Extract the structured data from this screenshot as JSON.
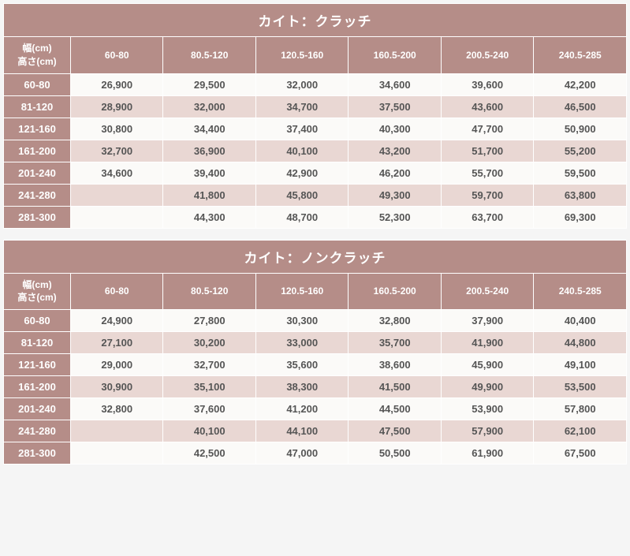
{
  "tables": [
    {
      "title": "カイト：クラッチ",
      "corner_top": "幅(cm)",
      "corner_bottom": "高さ(cm)",
      "columns": [
        "60-80",
        "80.5-120",
        "120.5-160",
        "160.5-200",
        "200.5-240",
        "240.5-285"
      ],
      "row_heads": [
        "60-80",
        "81-120",
        "121-160",
        "161-200",
        "201-240",
        "241-280",
        "281-300"
      ],
      "rows": [
        [
          "26,900",
          "29,500",
          "32,000",
          "34,600",
          "39,600",
          "42,200"
        ],
        [
          "28,900",
          "32,000",
          "34,700",
          "37,500",
          "43,600",
          "46,500"
        ],
        [
          "30,800",
          "34,400",
          "37,400",
          "40,300",
          "47,700",
          "50,900"
        ],
        [
          "32,700",
          "36,900",
          "40,100",
          "43,200",
          "51,700",
          "55,200"
        ],
        [
          "34,600",
          "39,400",
          "42,900",
          "46,200",
          "55,700",
          "59,500"
        ],
        [
          "",
          "41,800",
          "45,800",
          "49,300",
          "59,700",
          "63,800"
        ],
        [
          "",
          "44,300",
          "48,700",
          "52,300",
          "63,700",
          "69,300"
        ]
      ]
    },
    {
      "title": "カイト：ノンクラッチ",
      "corner_top": "幅(cm)",
      "corner_bottom": "高さ(cm)",
      "columns": [
        "60-80",
        "80.5-120",
        "120.5-160",
        "160.5-200",
        "200.5-240",
        "240.5-285"
      ],
      "row_heads": [
        "60-80",
        "81-120",
        "121-160",
        "161-200",
        "201-240",
        "241-280",
        "281-300"
      ],
      "rows": [
        [
          "24,900",
          "27,800",
          "30,300",
          "32,800",
          "37,900",
          "40,400"
        ],
        [
          "27,100",
          "30,200",
          "33,000",
          "35,700",
          "41,900",
          "44,800"
        ],
        [
          "29,000",
          "32,700",
          "35,600",
          "38,600",
          "45,900",
          "49,100"
        ],
        [
          "30,900",
          "35,100",
          "38,300",
          "41,500",
          "49,900",
          "53,500"
        ],
        [
          "32,800",
          "37,600",
          "41,200",
          "44,500",
          "53,900",
          "57,800"
        ],
        [
          "",
          "40,100",
          "44,100",
          "47,500",
          "57,900",
          "62,100"
        ],
        [
          "",
          "42,500",
          "47,000",
          "50,500",
          "61,900",
          "67,500"
        ]
      ]
    }
  ],
  "colors": {
    "header_bg": "#b58d88",
    "header_fg": "#ffffff",
    "row_odd_bg": "#fbfaf8",
    "row_even_bg": "#e9d7d3",
    "cell_fg": "#555555",
    "border": "#ffffff"
  }
}
